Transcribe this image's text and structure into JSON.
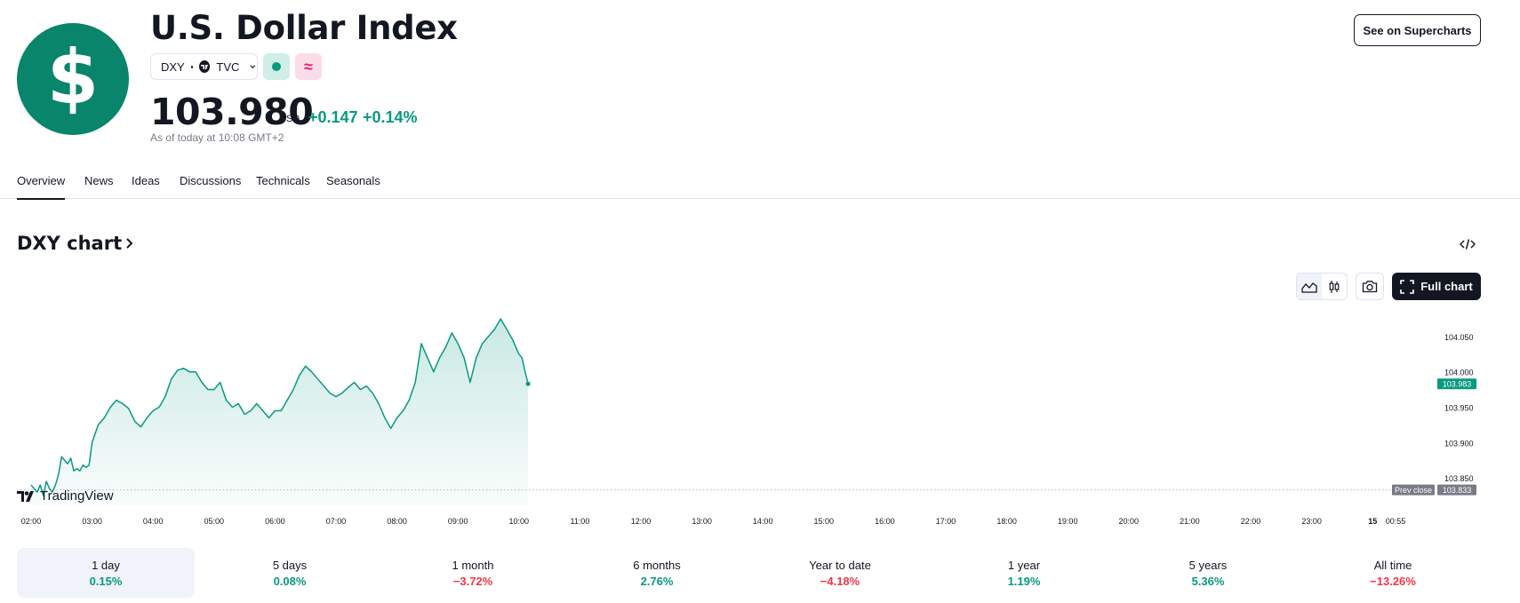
{
  "header": {
    "title": "U.S. Dollar Index",
    "symbol": "DXY",
    "exchange": "TVC",
    "price": "103.980",
    "currency": "USD",
    "change_abs": "+0.147",
    "change_pct": "+0.14%",
    "as_of": "As of today at 10:08 GMT+2",
    "supercharts_label": "See on Supercharts",
    "logo_glyph": "$",
    "wave_glyph": "≈"
  },
  "tabs": [
    {
      "label": "Overview",
      "active": true
    },
    {
      "label": "News",
      "active": false
    },
    {
      "label": "Ideas",
      "active": false
    },
    {
      "label": "Discussions",
      "active": false
    },
    {
      "label": "Technicals",
      "active": false
    },
    {
      "label": "Seasonals",
      "active": false
    }
  ],
  "chart_header": {
    "title": "DXY chart",
    "full_chart_label": "Full chart"
  },
  "chart_data": {
    "type": "area",
    "color": "#089981",
    "x": [
      "02:00",
      "03:00",
      "04:00",
      "05:00",
      "06:00",
      "07:00",
      "08:00",
      "09:00",
      "10:00",
      "11:00",
      "12:00",
      "13:00",
      "14:00",
      "15:00",
      "16:00",
      "17:00",
      "18:00",
      "19:00",
      "20:00",
      "21:00",
      "22:00",
      "23:00",
      "15",
      "00:55"
    ],
    "y_ticks": [
      "104.050",
      "104.000",
      "103.950",
      "103.900",
      "103.850"
    ],
    "ylim": [
      103.81,
      104.08
    ],
    "current_value": "103.983",
    "prev_close_label": "Prev close",
    "prev_close_value": "103.833",
    "watermark": "TradingView",
    "series": [
      {
        "points": [
          [
            0.0,
            103.84
          ],
          [
            0.05,
            103.835
          ],
          [
            0.1,
            103.83
          ],
          [
            0.15,
            103.84
          ],
          [
            0.2,
            103.825
          ],
          [
            0.25,
            103.845
          ],
          [
            0.3,
            103.835
          ],
          [
            0.35,
            103.83
          ],
          [
            0.4,
            103.84
          ],
          [
            0.45,
            103.855
          ],
          [
            0.5,
            103.88
          ],
          [
            0.55,
            103.875
          ],
          [
            0.6,
            103.87
          ],
          [
            0.65,
            103.878
          ],
          [
            0.7,
            103.86
          ],
          [
            0.75,
            103.863
          ],
          [
            0.8,
            103.86
          ],
          [
            0.85,
            103.868
          ],
          [
            0.9,
            103.865
          ],
          [
            0.95,
            103.868
          ],
          [
            1.0,
            103.9
          ],
          [
            1.1,
            103.925
          ],
          [
            1.2,
            103.935
          ],
          [
            1.3,
            103.95
          ],
          [
            1.4,
            103.96
          ],
          [
            1.5,
            103.955
          ],
          [
            1.6,
            103.948
          ],
          [
            1.7,
            103.93
          ],
          [
            1.8,
            103.922
          ],
          [
            1.9,
            103.935
          ],
          [
            2.0,
            103.945
          ],
          [
            2.1,
            103.95
          ],
          [
            2.2,
            103.965
          ],
          [
            2.3,
            103.99
          ],
          [
            2.4,
            104.002
          ],
          [
            2.5,
            104.005
          ],
          [
            2.6,
            104.0
          ],
          [
            2.7,
            104.0
          ],
          [
            2.8,
            103.985
          ],
          [
            2.9,
            103.975
          ],
          [
            3.0,
            103.975
          ],
          [
            3.1,
            103.985
          ],
          [
            3.2,
            103.96
          ],
          [
            3.3,
            103.95
          ],
          [
            3.4,
            103.955
          ],
          [
            3.5,
            103.94
          ],
          [
            3.6,
            103.945
          ],
          [
            3.7,
            103.955
          ],
          [
            3.8,
            103.945
          ],
          [
            3.9,
            103.935
          ],
          [
            4.0,
            103.945
          ],
          [
            4.1,
            103.945
          ],
          [
            4.2,
            103.96
          ],
          [
            4.3,
            103.975
          ],
          [
            4.4,
            103.995
          ],
          [
            4.5,
            104.008
          ],
          [
            4.6,
            104.0
          ],
          [
            4.7,
            103.99
          ],
          [
            4.8,
            103.98
          ],
          [
            4.9,
            103.97
          ],
          [
            5.0,
            103.965
          ],
          [
            5.1,
            103.97
          ],
          [
            5.2,
            103.978
          ],
          [
            5.3,
            103.985
          ],
          [
            5.4,
            103.975
          ],
          [
            5.5,
            103.98
          ],
          [
            5.6,
            103.97
          ],
          [
            5.7,
            103.955
          ],
          [
            5.8,
            103.935
          ],
          [
            5.9,
            103.92
          ],
          [
            6.0,
            103.935
          ],
          [
            6.1,
            103.945
          ],
          [
            6.2,
            103.96
          ],
          [
            6.3,
            103.985
          ],
          [
            6.4,
            104.04
          ],
          [
            6.5,
            104.02
          ],
          [
            6.6,
            104.0
          ],
          [
            6.7,
            104.02
          ],
          [
            6.8,
            104.035
          ],
          [
            6.9,
            104.055
          ],
          [
            7.0,
            104.04
          ],
          [
            7.1,
            104.02
          ],
          [
            7.2,
            103.985
          ],
          [
            7.3,
            104.02
          ],
          [
            7.4,
            104.04
          ],
          [
            7.5,
            104.05
          ],
          [
            7.6,
            104.06
          ],
          [
            7.7,
            104.075
          ],
          [
            7.8,
            104.06
          ],
          [
            7.9,
            104.045
          ],
          [
            8.0,
            104.025
          ],
          [
            8.05,
            104.02
          ],
          [
            8.1,
            104.0
          ],
          [
            8.15,
            103.983
          ]
        ]
      }
    ]
  },
  "periods": [
    {
      "label": "1 day",
      "value": "0.15%",
      "sign": "pos",
      "active": true
    },
    {
      "label": "5 days",
      "value": "0.08%",
      "sign": "pos",
      "active": false
    },
    {
      "label": "1 month",
      "value": "−3.72%",
      "sign": "neg",
      "active": false
    },
    {
      "label": "6 months",
      "value": "2.76%",
      "sign": "pos",
      "active": false
    },
    {
      "label": "Year to date",
      "value": "−4.18%",
      "sign": "neg",
      "active": false
    },
    {
      "label": "1 year",
      "value": "1.19%",
      "sign": "pos",
      "active": false
    },
    {
      "label": "5 years",
      "value": "5.36%",
      "sign": "pos",
      "active": false
    },
    {
      "label": "All time",
      "value": "−13.26%",
      "sign": "neg",
      "active": false
    }
  ]
}
